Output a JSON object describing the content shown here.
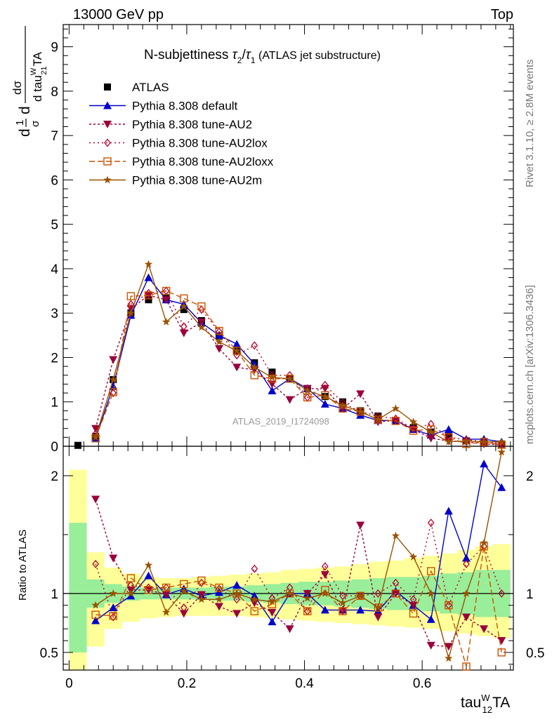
{
  "header": {
    "left": "13000 GeV pp",
    "right": "Top"
  },
  "side_labels": {
    "rivet": "Rivet 3.1.10, ≥ 2.8M events",
    "mcplots": "mcplots.cern.ch [arXiv:1306.3436]"
  },
  "chart_data": [
    {
      "type": "line",
      "title": "N-subjettiness τ₂/τ₁ (ATLAS jet substructure)",
      "title_parts": {
        "main": "N-subjettiness ",
        "tau": "τ",
        "sub2": "2",
        "slash": "/",
        "sub1": "1",
        "suffix": " (ATLAS jet substructure)"
      },
      "ylabel": "dσ normalised: 1/σ dσ / d tau^W_21 TA",
      "ylabel_parts": {
        "frac_num": "1",
        "frac_den": "σ",
        "d": "d",
        "dsig": "dσ",
        "den": "d tau",
        "sup": "W",
        "sub": "21",
        "tail": "TA"
      },
      "xlim": [
        -0.01,
        0.755
      ],
      "ylim": [
        0,
        9.5
      ],
      "yticks": [
        0,
        1,
        2,
        3,
        4,
        5,
        6,
        7,
        8,
        9
      ],
      "watermark": "ATLAS_2019_I1724098",
      "legend_position": "top-left",
      "x": [
        0.015,
        0.045,
        0.075,
        0.105,
        0.135,
        0.165,
        0.195,
        0.225,
        0.255,
        0.285,
        0.315,
        0.345,
        0.375,
        0.405,
        0.435,
        0.465,
        0.495,
        0.525,
        0.555,
        0.585,
        0.615,
        0.645,
        0.675,
        0.705,
        0.735
      ],
      "series": [
        {
          "name": "ATLAS",
          "color": "#000000",
          "marker": "square-filled",
          "dash": "none",
          "values": [
            0.02,
            0.22,
            1.5,
            3.0,
            3.3,
            3.33,
            3.08,
            2.83,
            2.48,
            2.15,
            1.88,
            1.67,
            1.52,
            1.3,
            1.12,
            1.0,
            0.8,
            0.68,
            0.57,
            0.42,
            0.32,
            0.22,
            0.12,
            0.07,
            0.05
          ]
        },
        {
          "name": "Pythia 8.308 default",
          "color": "#0000cc",
          "marker": "triangle-up-filled",
          "dash": "none",
          "values": [
            null,
            0.17,
            1.35,
            2.95,
            3.8,
            3.3,
            3.2,
            2.78,
            2.5,
            2.3,
            1.85,
            1.25,
            1.52,
            1.3,
            0.95,
            0.85,
            0.7,
            0.58,
            0.58,
            0.38,
            0.25,
            0.38,
            0.16,
            0.16,
            0.1
          ]
        },
        {
          "name": "Pythia 8.308 tune-AU2",
          "color": "#99003d",
          "marker": "triangle-down-filled",
          "dash": "3,3",
          "values": [
            null,
            0.4,
            1.95,
            3.1,
            3.4,
            3.3,
            2.55,
            2.8,
            2.2,
            1.78,
            1.72,
            1.4,
            1.05,
            1.3,
            1.3,
            0.85,
            1.18,
            0.55,
            0.58,
            0.38,
            0.18,
            0.12,
            0.1,
            0.05,
            0.03
          ]
        },
        {
          "name": "Pythia 8.308 tune-AU2lox",
          "color": "#b3002c",
          "marker": "diamond-open",
          "dash": "2,4",
          "values": [
            null,
            0.28,
            1.2,
            3.2,
            3.45,
            3.5,
            2.7,
            3.08,
            2.58,
            2.05,
            2.27,
            1.6,
            1.6,
            1.1,
            1.38,
            0.98,
            0.78,
            0.68,
            0.62,
            0.4,
            0.5,
            0.2,
            0.15,
            0.1,
            0.05
          ]
        },
        {
          "name": "Pythia 8.308 tune-AU2loxx",
          "color": "#cc5200",
          "marker": "square-open",
          "dash": "8,4",
          "values": [
            null,
            0.18,
            1.22,
            3.38,
            3.4,
            3.5,
            3.33,
            3.15,
            2.6,
            2.15,
            1.6,
            1.52,
            1.52,
            1.1,
            1.15,
            0.85,
            0.78,
            0.6,
            0.57,
            0.35,
            0.38,
            0.2,
            0.05,
            0.1,
            0.03
          ]
        },
        {
          "name": "Pythia 8.308 tune-AU2m",
          "color": "#995200",
          "marker": "star",
          "dash": "none",
          "values": [
            null,
            0.2,
            1.5,
            3.0,
            4.1,
            2.8,
            3.15,
            2.68,
            2.35,
            2.15,
            1.78,
            1.55,
            1.52,
            1.25,
            1.12,
            0.92,
            0.78,
            0.6,
            0.85,
            0.55,
            0.32,
            0.1,
            0.12,
            0.1,
            0.1
          ]
        }
      ]
    },
    {
      "type": "line",
      "ylabel": "Ratio to ATLAS",
      "xlabel": "tau^W_12 TA",
      "xlabel_parts": {
        "main": "tau",
        "sup": "W",
        "sub": "12",
        "tail": "TA"
      },
      "xlim": [
        -0.01,
        0.755
      ],
      "ylim": [
        0.35,
        2.25
      ],
      "xticks": [
        0,
        0.2,
        0.4,
        0.6
      ],
      "xtick_labels": [
        "0",
        "0.2",
        "0.4",
        "0.6"
      ],
      "yticks": [
        0.5,
        1,
        2
      ],
      "ytick_labels": [
        "0.5",
        "1",
        "2"
      ],
      "band_inner_color": "#99ee99",
      "band_outer_color": "#ffff99",
      "band_edges": [
        0.0,
        0.03,
        0.06,
        0.09,
        0.12,
        0.15,
        0.18,
        0.21,
        0.24,
        0.27,
        0.3,
        0.33,
        0.36,
        0.39,
        0.42,
        0.45,
        0.48,
        0.51,
        0.54,
        0.57,
        0.6,
        0.63,
        0.66,
        0.69,
        0.72,
        0.75
      ],
      "band_inner": [
        [
          0.5,
          1.6
        ],
        [
          0.88,
          1.12
        ],
        [
          0.92,
          1.08
        ],
        [
          0.94,
          1.06
        ],
        [
          0.95,
          1.05
        ],
        [
          0.95,
          1.05
        ],
        [
          0.95,
          1.05
        ],
        [
          0.95,
          1.05
        ],
        [
          0.94,
          1.06
        ],
        [
          0.94,
          1.06
        ],
        [
          0.93,
          1.07
        ],
        [
          0.92,
          1.08
        ],
        [
          0.91,
          1.09
        ],
        [
          0.9,
          1.1
        ],
        [
          0.9,
          1.1
        ],
        [
          0.89,
          1.11
        ],
        [
          0.88,
          1.12
        ],
        [
          0.87,
          1.13
        ],
        [
          0.86,
          1.14
        ],
        [
          0.86,
          1.14
        ],
        [
          0.85,
          1.15
        ],
        [
          0.83,
          1.17
        ],
        [
          0.82,
          1.18
        ],
        [
          0.8,
          1.2
        ],
        [
          0.8,
          1.2
        ]
      ],
      "band_outer": [
        [
          0.3,
          2.05
        ],
        [
          0.55,
          1.35
        ],
        [
          0.7,
          1.22
        ],
        [
          0.76,
          1.17
        ],
        [
          0.79,
          1.14
        ],
        [
          0.8,
          1.13
        ],
        [
          0.81,
          1.13
        ],
        [
          0.81,
          1.14
        ],
        [
          0.81,
          1.15
        ],
        [
          0.81,
          1.16
        ],
        [
          0.8,
          1.17
        ],
        [
          0.79,
          1.18
        ],
        [
          0.78,
          1.2
        ],
        [
          0.77,
          1.21
        ],
        [
          0.76,
          1.22
        ],
        [
          0.75,
          1.23
        ],
        [
          0.74,
          1.25
        ],
        [
          0.73,
          1.27
        ],
        [
          0.72,
          1.28
        ],
        [
          0.71,
          1.3
        ],
        [
          0.7,
          1.32
        ],
        [
          0.68,
          1.34
        ],
        [
          0.66,
          1.37
        ],
        [
          0.64,
          1.4
        ],
        [
          0.62,
          1.42
        ]
      ],
      "series": [
        {
          "name": "Pythia 8.308 default",
          "color": "#0000cc",
          "marker": "triangle-up-filled",
          "dash": "none",
          "values": [
            null,
            0.77,
            0.88,
            0.98,
            1.15,
            0.99,
            1.04,
            0.98,
            1.01,
            1.07,
            0.98,
            0.76,
            1.0,
            1.0,
            0.86,
            0.86,
            0.86,
            0.85,
            1.02,
            0.9,
            0.78,
            1.7,
            1.3,
            2.1,
            1.9
          ]
        },
        {
          "name": "Pythia 8.308 tune-AU2",
          "color": "#99003d",
          "marker": "triangle-down-filled",
          "dash": "3,3",
          "values": [
            null,
            1.8,
            1.3,
            1.03,
            1.03,
            0.99,
            0.83,
            0.99,
            0.89,
            0.83,
            0.92,
            0.84,
            0.7,
            1.0,
            1.16,
            0.85,
            1.58,
            0.8,
            1.0,
            0.9,
            0.56,
            0.55,
            0.8,
            0.7,
            0.6
          ]
        },
        {
          "name": "Pythia 8.308 tune-AU2lox",
          "color": "#b3002c",
          "marker": "diamond-open",
          "dash": "2,4",
          "values": [
            null,
            1.25,
            0.8,
            1.07,
            1.05,
            1.05,
            0.88,
            1.09,
            1.04,
            0.95,
            1.21,
            0.96,
            1.05,
            0.85,
            1.23,
            0.98,
            0.98,
            1.0,
            1.09,
            0.95,
            1.6,
            0.9,
            1.25,
            1.4,
            1.0
          ]
        },
        {
          "name": "Pythia 8.308 tune-AU2loxx",
          "color": "#cc5200",
          "marker": "square-open",
          "dash": "8,4",
          "values": [
            null,
            0.82,
            0.81,
            1.13,
            1.03,
            1.05,
            1.08,
            1.11,
            1.05,
            1.0,
            0.85,
            0.91,
            1.0,
            0.85,
            1.03,
            0.85,
            0.98,
            0.88,
            1.0,
            0.83,
            1.19,
            0.9,
            0.38,
            1.4,
            0.5
          ]
        },
        {
          "name": "Pythia 8.308 tune-AU2m",
          "color": "#995200",
          "marker": "star",
          "dash": "none",
          "values": [
            null,
            0.9,
            1.0,
            1.0,
            1.24,
            0.84,
            1.02,
            0.95,
            0.95,
            1.0,
            0.95,
            0.93,
            1.0,
            0.96,
            1.0,
            0.92,
            0.98,
            0.88,
            1.49,
            1.31,
            1.0,
            0.45,
            1.0,
            1.43,
            2.2
          ]
        }
      ]
    }
  ]
}
